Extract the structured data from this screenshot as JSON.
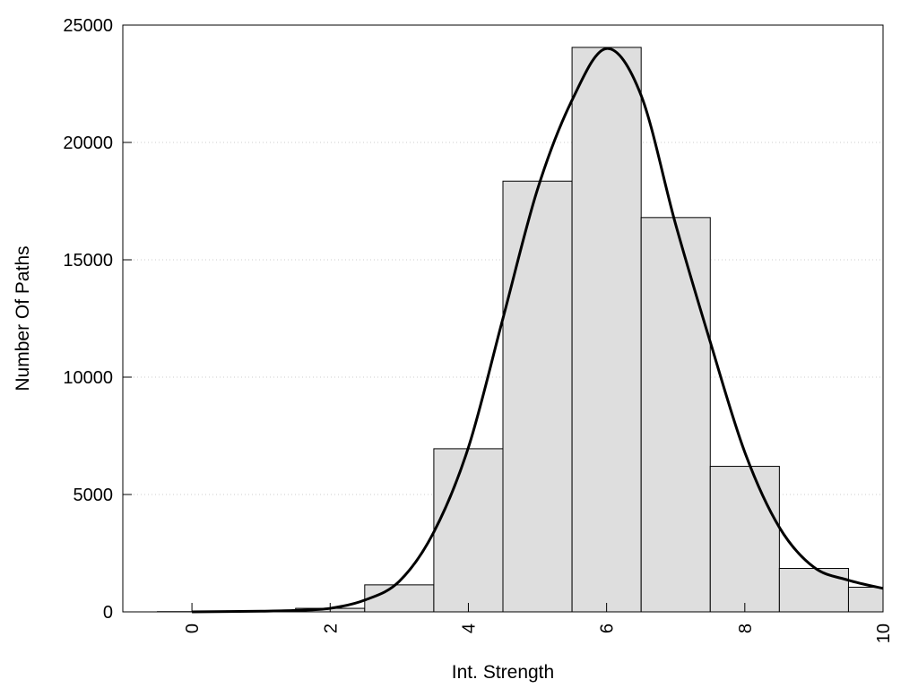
{
  "chart_data": {
    "type": "bar",
    "subtype": "histogram-with-density-curve",
    "title": "",
    "xlabel": "Int. Strength",
    "ylabel": "Number Of Paths",
    "xlim": [
      -1,
      10
    ],
    "ylim": [
      0,
      25000
    ],
    "x_ticks": [
      0,
      2,
      4,
      6,
      8,
      10
    ],
    "x_tick_labels": [
      "0",
      "2",
      "4",
      "6",
      "8",
      "10"
    ],
    "y_ticks": [
      0,
      5000,
      10000,
      15000,
      20000,
      25000
    ],
    "y_tick_labels": [
      "0",
      "5000",
      "10000",
      "15000",
      "20000",
      "25000"
    ],
    "grid": "horizontal-dotted",
    "bar_width": 1,
    "bins": [
      {
        "center": 0,
        "value": 10
      },
      {
        "center": 1,
        "value": 40
      },
      {
        "center": 2,
        "value": 150
      },
      {
        "center": 3,
        "value": 1150
      },
      {
        "center": 4,
        "value": 6950
      },
      {
        "center": 5,
        "value": 18350
      },
      {
        "center": 6,
        "value": 24050
      },
      {
        "center": 7,
        "value": 16800
      },
      {
        "center": 8,
        "value": 6200
      },
      {
        "center": 9,
        "value": 1850
      },
      {
        "center": 10,
        "value": 1050
      }
    ],
    "curve": {
      "x": [
        0,
        1,
        1.5,
        2,
        2.5,
        3,
        3.5,
        4,
        4.5,
        5,
        5.5,
        6,
        6.5,
        7,
        7.5,
        8,
        8.5,
        9,
        9.5,
        10
      ],
      "y": [
        0,
        30,
        60,
        150,
        500,
        1300,
        3400,
        7000,
        12500,
        18000,
        21800,
        24000,
        22000,
        16500,
        11500,
        6800,
        3600,
        1900,
        1350,
        1000
      ]
    },
    "colors": {
      "bar_fill": "#dedede",
      "bar_stroke": "#000000",
      "curve": "#000000",
      "grid": "#cccccc"
    }
  }
}
